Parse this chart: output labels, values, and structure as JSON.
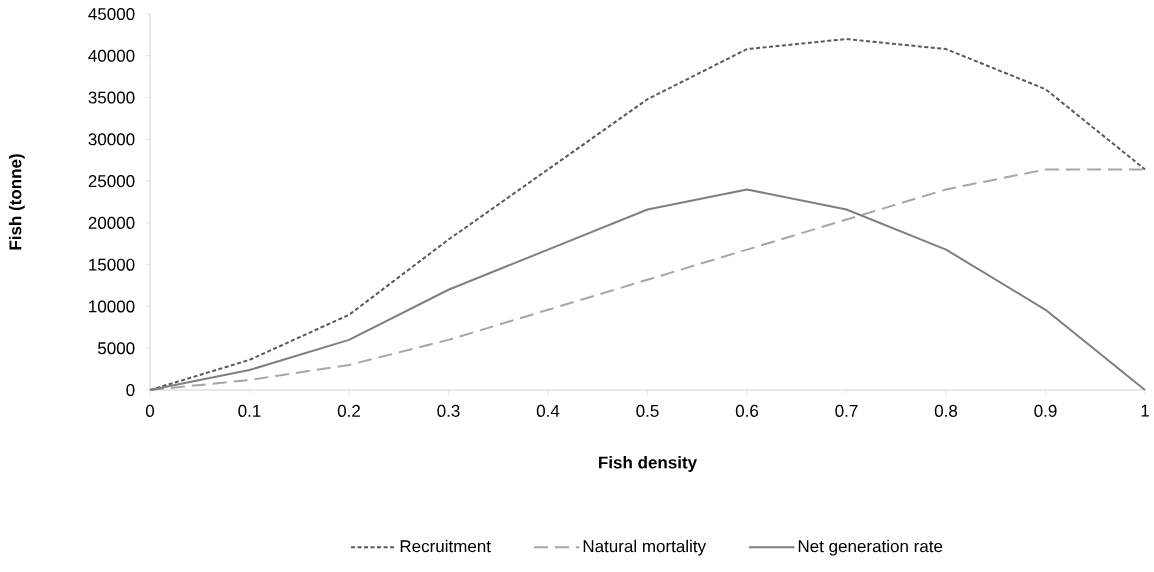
{
  "chart_data": {
    "type": "line",
    "xlabel": "Fish density",
    "ylabel": "Fish (tonne)",
    "x": [
      0,
      0.1,
      0.2,
      0.3,
      0.4,
      0.5,
      0.6,
      0.7,
      0.8,
      0.9,
      1
    ],
    "series": [
      {
        "name": "Recruitment",
        "color": "#595959",
        "line_style": "dotted",
        "values": [
          0,
          3600,
          9000,
          18000,
          26400,
          34800,
          40800,
          42000,
          40800,
          36000,
          26400
        ]
      },
      {
        "name": "Natural mortality",
        "color": "#a6a6a6",
        "line_style": "dashed",
        "values": [
          0,
          1200,
          3000,
          6000,
          9600,
          13200,
          16800,
          20400,
          24000,
          26400,
          26400
        ]
      },
      {
        "name": "Net generation rate",
        "color": "#7f7f7f",
        "line_style": "solid",
        "values": [
          0,
          2400,
          6000,
          12000,
          16800,
          21600,
          24000,
          21600,
          16800,
          9600,
          0
        ]
      }
    ],
    "xlim": [
      0,
      1
    ],
    "xticks": [
      0,
      0.1,
      0.2,
      0.3,
      0.4,
      0.5,
      0.6,
      0.7,
      0.8,
      0.9,
      1
    ],
    "ylim": [
      0,
      45000
    ],
    "yticks": [
      0,
      5000,
      10000,
      15000,
      20000,
      25000,
      30000,
      35000,
      40000,
      45000
    ],
    "grid": false,
    "legend": "bottom"
  }
}
